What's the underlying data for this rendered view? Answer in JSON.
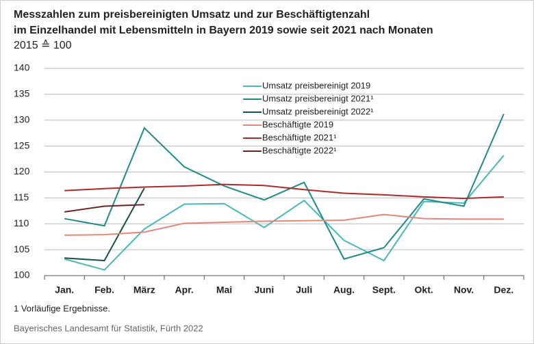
{
  "chart_data": {
    "type": "line",
    "title": [
      "Messzahlen zum preisbereinigten Umsatz und zur Beschäftigtenzahl",
      "im Einzelhandel mit Lebensmitteln in Bayern 2019 sowie seit 2021 nach Monaten"
    ],
    "subtitle": "2015 ≙ 100",
    "categories": [
      "Jan.",
      "Feb.",
      "März",
      "Apr.",
      "Mai",
      "Juni",
      "Juli",
      "Aug.",
      "Sept.",
      "Okt.",
      "Nov.",
      "Dez."
    ],
    "series": [
      {
        "name": "Umsatz preisbereinigt 2019",
        "color": "#45b9b9",
        "values": [
          103.2,
          101.1,
          109.0,
          113.8,
          113.9,
          109.3,
          114.5,
          106.8,
          102.9,
          114.3,
          114.0,
          123.2
        ]
      },
      {
        "name": "Umsatz preisbereinigt 2021¹",
        "color": "#1e8a88",
        "values": [
          111.0,
          109.6,
          128.5,
          121.0,
          117.3,
          114.6,
          118.0,
          103.2,
          105.4,
          114.8,
          113.4,
          131.2
        ]
      },
      {
        "name": "Umsatz preisbereinigt 2022¹",
        "color": "#164f4d",
        "values": [
          103.4,
          102.9,
          116.9,
          null,
          null,
          null,
          null,
          null,
          null,
          null,
          null,
          null
        ]
      },
      {
        "name": "Beschäftigte 2019",
        "color": "#e8857a",
        "values": [
          107.8,
          107.9,
          108.4,
          110.1,
          110.3,
          110.5,
          110.6,
          110.7,
          111.8,
          111.0,
          110.9,
          110.9
        ]
      },
      {
        "name": "Beschäftigte 2021¹",
        "color": "#b2282a",
        "values": [
          116.4,
          116.8,
          117.1,
          117.3,
          117.6,
          117.4,
          116.6,
          115.9,
          115.6,
          115.2,
          114.9,
          115.2
        ]
      },
      {
        "name": "Beschäftigte 2022¹",
        "color": "#6b2424",
        "values": [
          112.3,
          113.4,
          113.7,
          null,
          null,
          null,
          null,
          null,
          null,
          null,
          null,
          null
        ]
      }
    ],
    "ylim": [
      100,
      140
    ],
    "yticks": [
      100,
      105,
      110,
      115,
      120,
      125,
      130,
      135,
      140
    ],
    "grid": true,
    "footnote": "1  Vorläufige Ergebnisse.",
    "source": "Bayerisches Landesamt für Statistik, Fürth 2022"
  }
}
